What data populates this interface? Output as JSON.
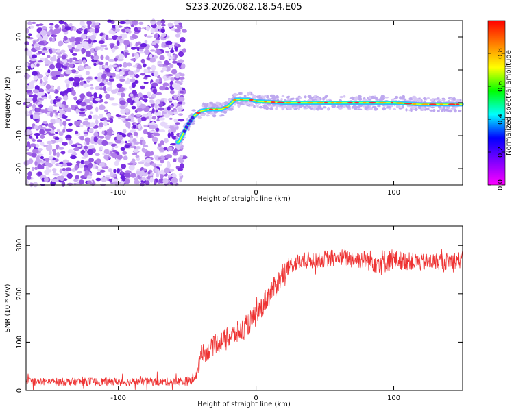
{
  "title": "S233.2026.082.18.54.E05",
  "chart_data": [
    {
      "type": "heatmap",
      "xlabel": "Height of straight line (km)",
      "ylabel": "Frequency (Hz)",
      "xlim": [
        -167,
        150
      ],
      "ylim": [
        -25,
        25
      ],
      "x_ticks": [
        -100,
        0,
        100
      ],
      "y_ticks": [
        -20,
        -10,
        0,
        10,
        20
      ],
      "colorbar": {
        "label": "Normalized spectral amplitude",
        "ticks": [
          0.0,
          0.2,
          0.4,
          0.6,
          0.8
        ],
        "range": [
          0,
          1
        ],
        "colormap": [
          "#ff00ff",
          "#8000ff",
          "#0000ff",
          "#00ffff",
          "#00ff00",
          "#ffff00",
          "#ff8000",
          "#ff0000"
        ]
      },
      "noise_region_x": [
        -167,
        -52
      ],
      "signal_trace": {
        "x": [
          -56,
          -50,
          -45,
          -40,
          -35,
          -30,
          -25,
          -20,
          -15,
          -10,
          -5,
          0,
          20,
          40,
          60,
          80,
          100,
          120,
          140,
          150
        ],
        "freq": [
          -12,
          -7,
          -4,
          -2.5,
          -2,
          -2,
          -2,
          -1,
          1,
          1,
          1,
          0.5,
          0,
          0,
          0,
          0,
          0,
          -0.5,
          -0.5,
          -0.5
        ]
      }
    },
    {
      "type": "line",
      "xlabel": "Height of straight line (km)",
      "ylabel": "SNR (10 * v/v)",
      "xlim": [
        -167,
        150
      ],
      "ylim": [
        0,
        340
      ],
      "x_ticks": [
        -100,
        0,
        100
      ],
      "y_ticks": [
        0,
        100,
        200,
        300
      ],
      "line_color": "#ee3333",
      "series": [
        {
          "name": "SNR",
          "x": [
            -167,
            -140,
            -110,
            -80,
            -60,
            -47,
            -42,
            -40,
            -37,
            -30,
            -20,
            -10,
            0,
            10,
            20,
            25,
            30,
            40,
            60,
            80,
            90,
            100,
            120,
            150
          ],
          "y": [
            18,
            18,
            18,
            18,
            18,
            20,
            40,
            85,
            75,
            95,
            110,
            125,
            155,
            200,
            240,
            260,
            265,
            270,
            275,
            270,
            265,
            270,
            265,
            270
          ],
          "noise": [
            8,
            8,
            8,
            8,
            8,
            10,
            15,
            18,
            18,
            20,
            22,
            24,
            24,
            24,
            24,
            18,
            18,
            18,
            18,
            20,
            28,
            20,
            18,
            18
          ]
        }
      ]
    }
  ]
}
